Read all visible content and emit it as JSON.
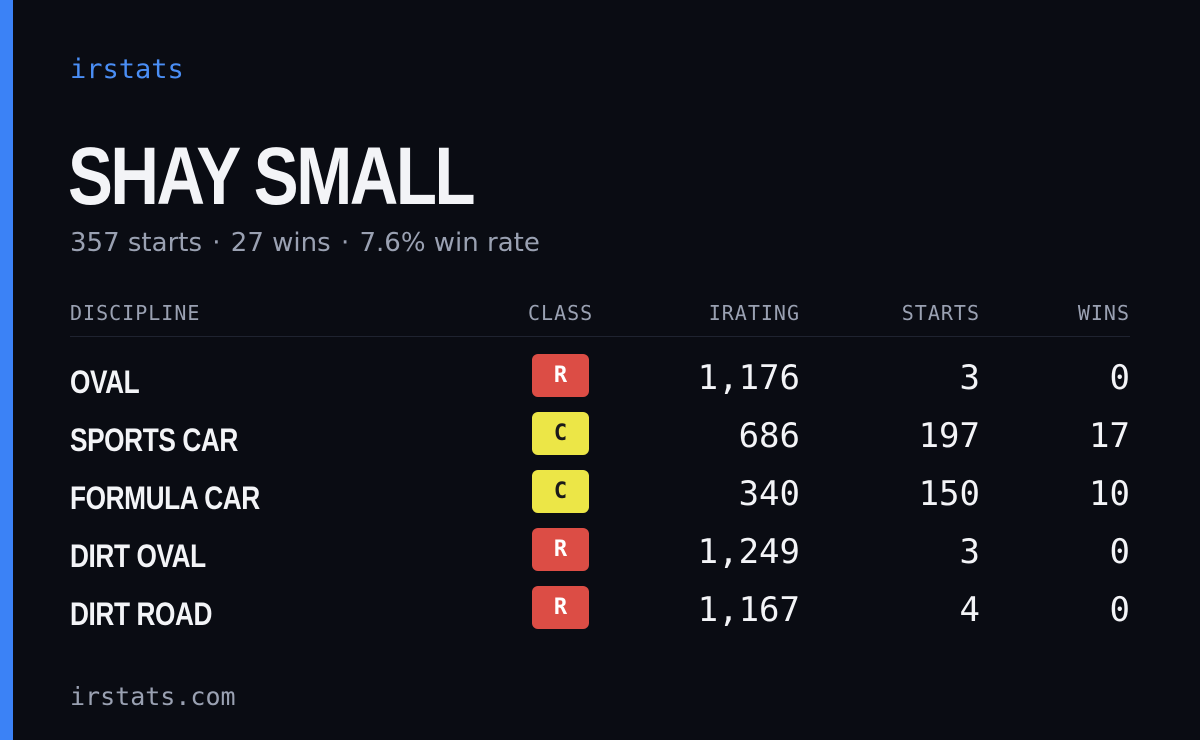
{
  "brand": "irstats",
  "driver": {
    "name": "SHAY SMALL",
    "starts_text": "357 starts",
    "wins_text": "27 wins",
    "winrate_text": "7.6% win rate",
    "separator": "·"
  },
  "table": {
    "headers": {
      "discipline": "DISCIPLINE",
      "class": "CLASS",
      "irating": "IRATING",
      "starts": "STARTS",
      "wins": "WINS"
    },
    "rows": [
      {
        "discipline": "OVAL",
        "class": "R",
        "irating": "1,176",
        "starts": "3",
        "wins": "0"
      },
      {
        "discipline": "SPORTS CAR",
        "class": "C",
        "irating": "686",
        "starts": "197",
        "wins": "17"
      },
      {
        "discipline": "FORMULA CAR",
        "class": "C",
        "irating": "340",
        "starts": "150",
        "wins": "10"
      },
      {
        "discipline": "DIRT OVAL",
        "class": "R",
        "irating": "1,249",
        "starts": "3",
        "wins": "0"
      },
      {
        "discipline": "DIRT ROAD",
        "class": "R",
        "irating": "1,167",
        "starts": "4",
        "wins": "0"
      }
    ]
  },
  "class_colors": {
    "R": {
      "bg": "#dc4d45",
      "fg": "#ffffff"
    },
    "C": {
      "bg": "#ece647",
      "fg": "#1a1a1a"
    }
  },
  "footer": "irstats.com",
  "colors": {
    "accent": "#3b82f6",
    "background": "#0a0c13"
  }
}
